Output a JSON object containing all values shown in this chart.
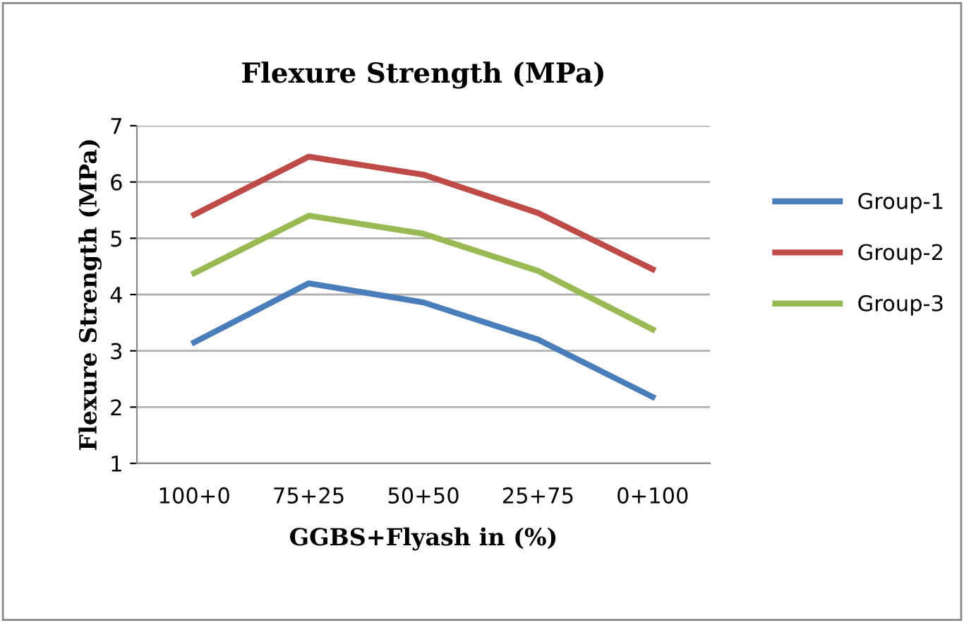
{
  "chart_data": {
    "type": "line",
    "title": "Flexure Strength (MPa)",
    "xlabel": "GGBS+Flyash in (%)",
    "ylabel": "Flexure Strength (MPa)",
    "categories": [
      "100+0",
      "75+25",
      "50+50",
      "25+75",
      "0+100"
    ],
    "series": [
      {
        "name": "Group-1",
        "color": "#4a7ebb",
        "values": [
          3.15,
          4.2,
          3.86,
          3.2,
          2.18
        ]
      },
      {
        "name": "Group-2",
        "color": "#be4b48",
        "values": [
          5.42,
          6.45,
          6.13,
          5.45,
          4.45
        ]
      },
      {
        "name": "Group-3",
        "color": "#98b954",
        "values": [
          4.38,
          5.4,
          5.08,
          4.42,
          3.38
        ]
      }
    ],
    "ylim": [
      1,
      7
    ],
    "yticks": [
      1,
      2,
      3,
      4,
      5,
      6,
      7
    ],
    "grid": "y",
    "legend": "right",
    "marker": "none",
    "line_style": "solid"
  }
}
